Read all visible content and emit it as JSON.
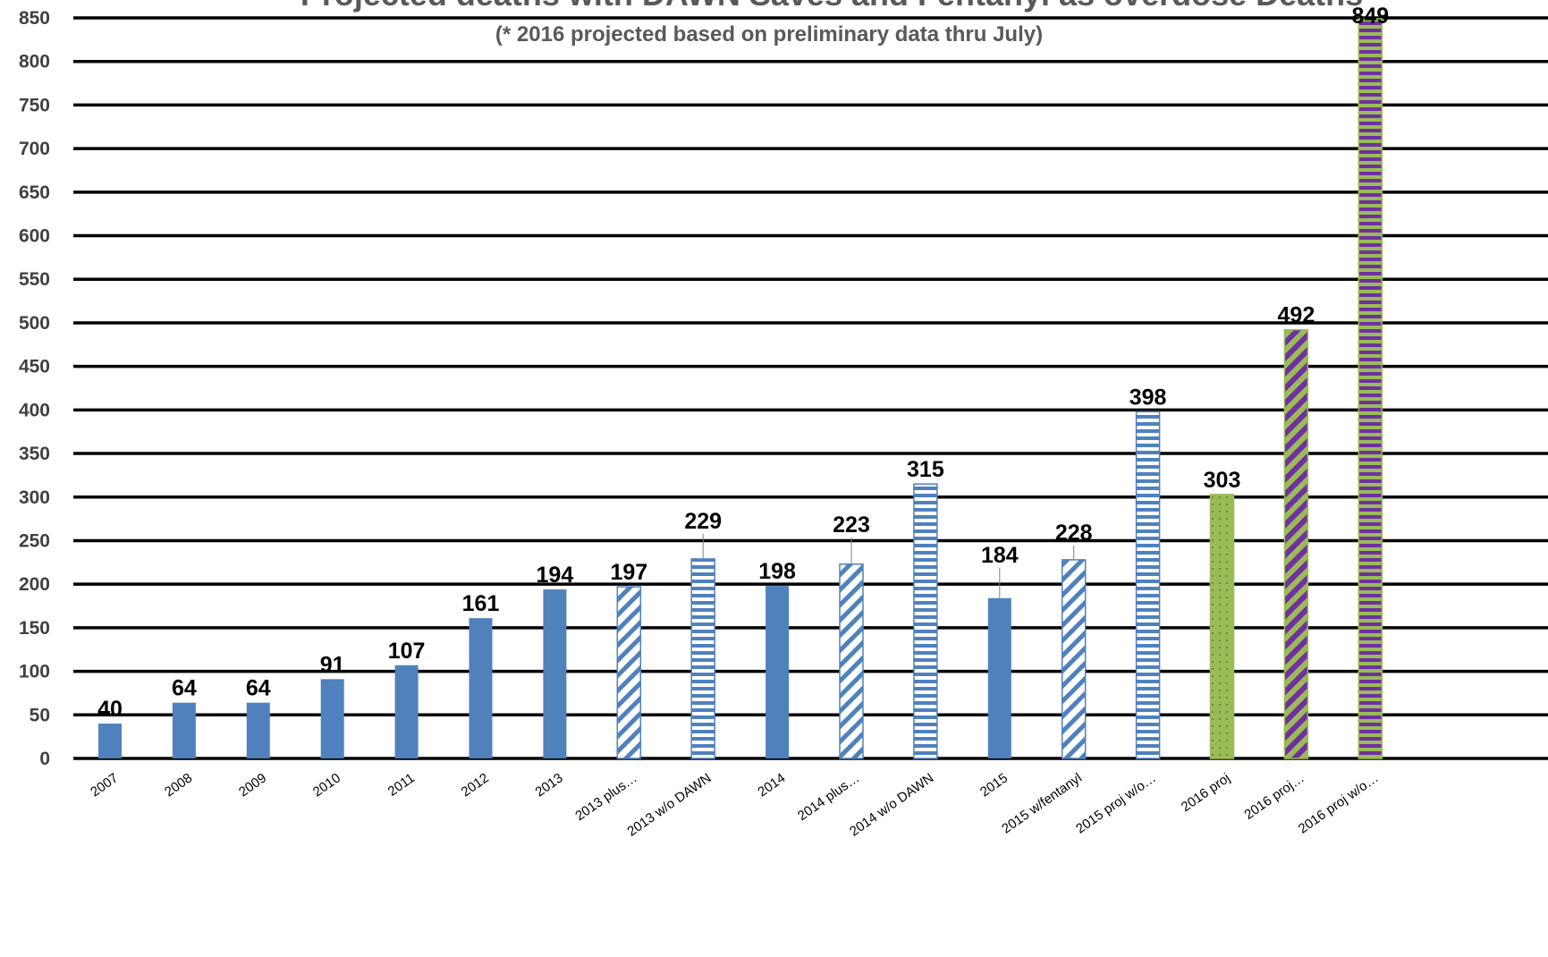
{
  "chart_data": {
    "type": "bar",
    "title": "Projected deaths with DAWN Saves and Fentanyl as overdose Deaths",
    "subtitle": "(* 2016 projected based on preliminary data thru July)",
    "xlabel": "",
    "ylabel": "",
    "ylim": [
      0,
      850
    ],
    "ytick_step": 50,
    "grid": true,
    "legend": "none",
    "categories": [
      "2007",
      "2008",
      "2009",
      "2010",
      "2011",
      "2012",
      "2013",
      "2013 plus…",
      "2013 w/o DAWN",
      "2014",
      "2014 plus…",
      "2014 w/o DAWN",
      "2015",
      "2015 w/fentanyl",
      "2015 proj w/o…",
      "2016 proj",
      "2016 proj…",
      "2016 proj w/o…"
    ],
    "values": [
      40,
      64,
      64,
      91,
      107,
      161,
      194,
      197,
      229,
      198,
      223,
      315,
      184,
      228,
      398,
      303,
      492,
      849
    ],
    "data_labels": [
      "40",
      "64",
      "64",
      "91",
      "107",
      "161",
      "194",
      "197",
      "229",
      "198",
      "223",
      "315",
      "184",
      "228",
      "398",
      "303",
      "492",
      "849"
    ],
    "bar_styles": [
      "solid-blue",
      "solid-blue",
      "solid-blue",
      "solid-blue",
      "solid-blue",
      "solid-blue",
      "solid-blue",
      "diagonal-blue",
      "horizontal-blue",
      "solid-blue",
      "diagonal-blue",
      "horizontal-blue",
      "solid-blue",
      "diagonal-blue",
      "horizontal-blue",
      "dotted-green",
      "diagonal-green-purple",
      "horizontal-green-purple"
    ],
    "colors": {
      "blue": "#4f81bd",
      "green": "#9bbb59",
      "purple": "#7030a0",
      "dot": "#5a7a2a",
      "gridline": "#000000",
      "title": "#595959",
      "tick": "#404040"
    }
  }
}
